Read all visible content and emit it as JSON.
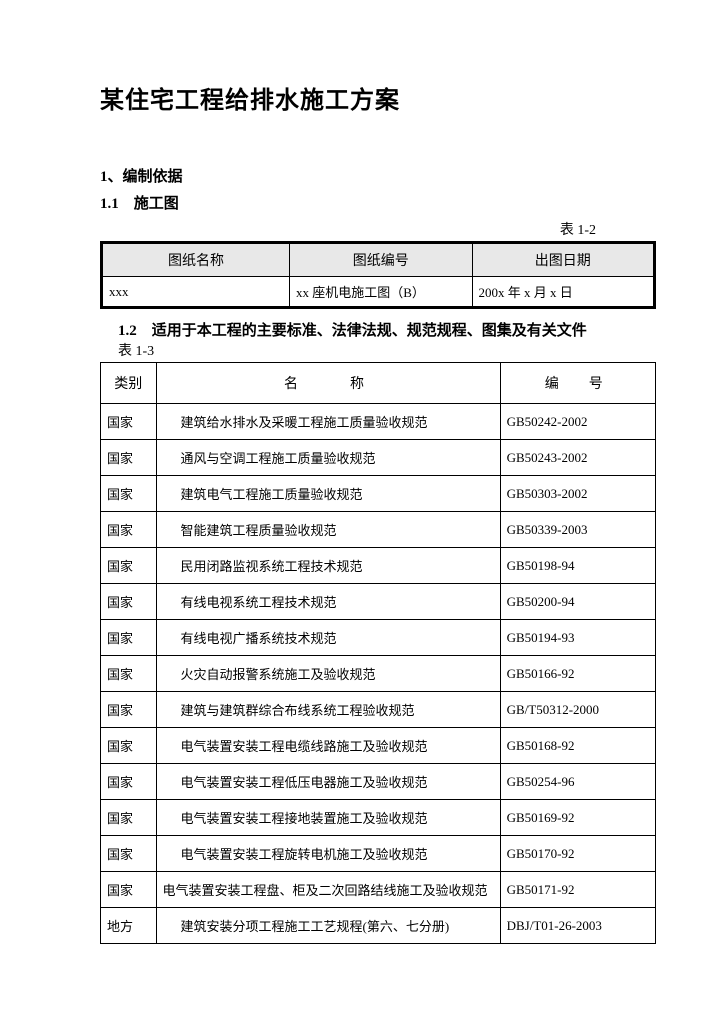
{
  "title": "某住宅工程给排水施工方案",
  "section1": "1、编制依据",
  "section1_1": "1.1　施工图",
  "table1_label": "表 1-2",
  "table1": {
    "headers": [
      "图纸名称",
      "图纸编号",
      "出图日期"
    ],
    "row": [
      "xxx",
      "xx 座机电施工图（B）",
      "200x 年 x 月 x 日"
    ]
  },
  "section1_2": "1.2　适用于本工程的主要标准、法律法规、规范规程、图集及有关文件",
  "table2_label": "表 1-3",
  "table2": {
    "headers": [
      "类别",
      "名　　称",
      "编　号"
    ],
    "rows": [
      {
        "c": "国家",
        "n": "建筑给水排水及采暖工程施工质量验收规范",
        "code": "GB50242-2002",
        "tight": false
      },
      {
        "c": "国家",
        "n": "通风与空调工程施工质量验收规范",
        "code": "GB50243-2002",
        "tight": false
      },
      {
        "c": "国家",
        "n": "建筑电气工程施工质量验收规范",
        "code": "GB50303-2002",
        "tight": false
      },
      {
        "c": "国家",
        "n": "智能建筑工程质量验收规范",
        "code": "GB50339-2003",
        "tight": false
      },
      {
        "c": "国家",
        "n": "民用闭路监视系统工程技术规范",
        "code": "GB50198-94",
        "tight": false
      },
      {
        "c": "国家",
        "n": "有线电视系统工程技术规范",
        "code": "GB50200-94",
        "tight": false
      },
      {
        "c": "国家",
        "n": "有线电视广播系统技术规范",
        "code": "GB50194-93",
        "tight": false
      },
      {
        "c": "国家",
        "n": "火灾自动报警系统施工及验收规范",
        "code": "GB50166-92",
        "tight": false
      },
      {
        "c": "国家",
        "n": "建筑与建筑群综合布线系统工程验收规范",
        "code": "GB/T50312-2000",
        "tight": false
      },
      {
        "c": "国家",
        "n": "电气装置安装工程电缆线路施工及验收规范",
        "code": "GB50168-92",
        "tight": false
      },
      {
        "c": "国家",
        "n": "电气装置安装工程低压电器施工及验收规范",
        "code": "GB50254-96",
        "tight": false
      },
      {
        "c": "国家",
        "n": "电气装置安装工程接地装置施工及验收规范",
        "code": "GB50169-92",
        "tight": false
      },
      {
        "c": "国家",
        "n": "电气装置安装工程旋转电机施工及验收规范",
        "code": "GB50170-92",
        "tight": false
      },
      {
        "c": "国家",
        "n": "电气装置安装工程盘、柜及二次回路结线施工及验收规范",
        "code": "GB50171-92",
        "tight": true
      },
      {
        "c": "地方",
        "n": "建筑安装分项工程施工工艺规程(第六、七分册)",
        "code": "DBJ/T01-26-2003",
        "tight": false
      }
    ]
  }
}
